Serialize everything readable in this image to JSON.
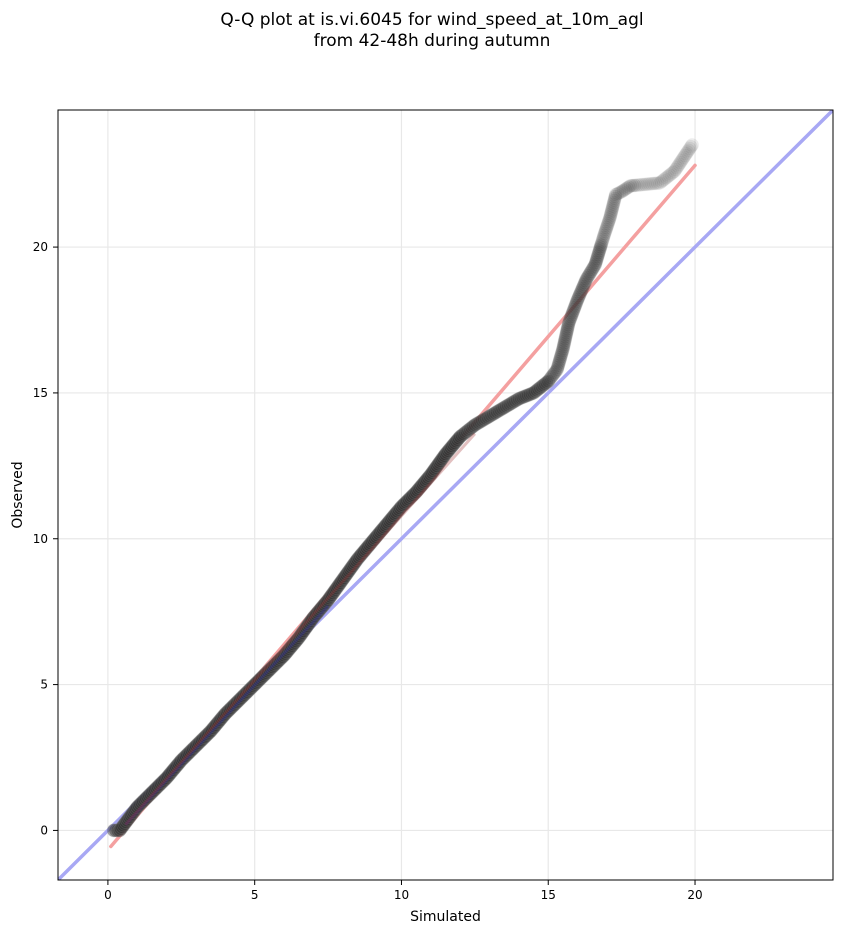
{
  "chart_data": {
    "type": "scatter",
    "title_lines": [
      "Q-Q plot at is.vi.6045 for wind_speed_at_10m_agl",
      "from 42-48h during autumn"
    ],
    "xlabel": "Simulated",
    "ylabel": "Observed",
    "xlim": [
      -1.7,
      24.7
    ],
    "ylim": [
      -1.7,
      24.7
    ],
    "x_ticks": [
      0,
      5,
      10,
      15,
      20
    ],
    "y_ticks": [
      0,
      5,
      10,
      15,
      20
    ],
    "grid": true,
    "colors": {
      "points": "#333333",
      "fit_line": "#f4a0a0",
      "identity_line": "#a8a8f4",
      "grid": "#e8e8e8"
    },
    "series": [
      {
        "type": "scatter",
        "x": [
          0.2,
          0.4,
          0.7,
          1.0,
          1.3,
          1.6,
          2.0,
          2.5,
          3.0,
          3.5,
          4.0,
          4.5,
          5.0,
          5.5,
          6.0,
          6.5,
          7.0,
          7.5,
          8.0,
          8.5,
          9.0,
          9.5,
          10.0,
          10.5,
          11.0,
          11.5,
          12.0,
          12.5,
          13.0,
          13.5,
          14.0,
          14.5,
          15.0,
          15.3,
          15.5,
          15.7,
          16.0,
          16.3,
          16.6,
          16.9,
          17.1,
          17.3,
          17.5,
          17.8,
          18.8,
          19.3,
          19.9
        ],
        "y": [
          0.0,
          0.0,
          0.4,
          0.8,
          1.1,
          1.4,
          1.8,
          2.4,
          2.9,
          3.4,
          4.0,
          4.5,
          5.0,
          5.5,
          6.0,
          6.6,
          7.3,
          7.9,
          8.6,
          9.3,
          9.9,
          10.5,
          11.1,
          11.6,
          12.2,
          12.9,
          13.5,
          13.9,
          14.2,
          14.5,
          14.8,
          15.0,
          15.4,
          15.8,
          16.5,
          17.4,
          18.2,
          18.9,
          19.4,
          20.4,
          21.0,
          21.8,
          21.9,
          22.1,
          22.2,
          22.6,
          23.5
        ]
      },
      {
        "type": "line",
        "x": [
          0.1,
          20.0
        ],
        "y": [
          -0.55,
          22.8
        ]
      },
      {
        "type": "line",
        "x": [
          -1.7,
          24.7
        ],
        "y": [
          -1.7,
          24.7
        ]
      }
    ]
  }
}
